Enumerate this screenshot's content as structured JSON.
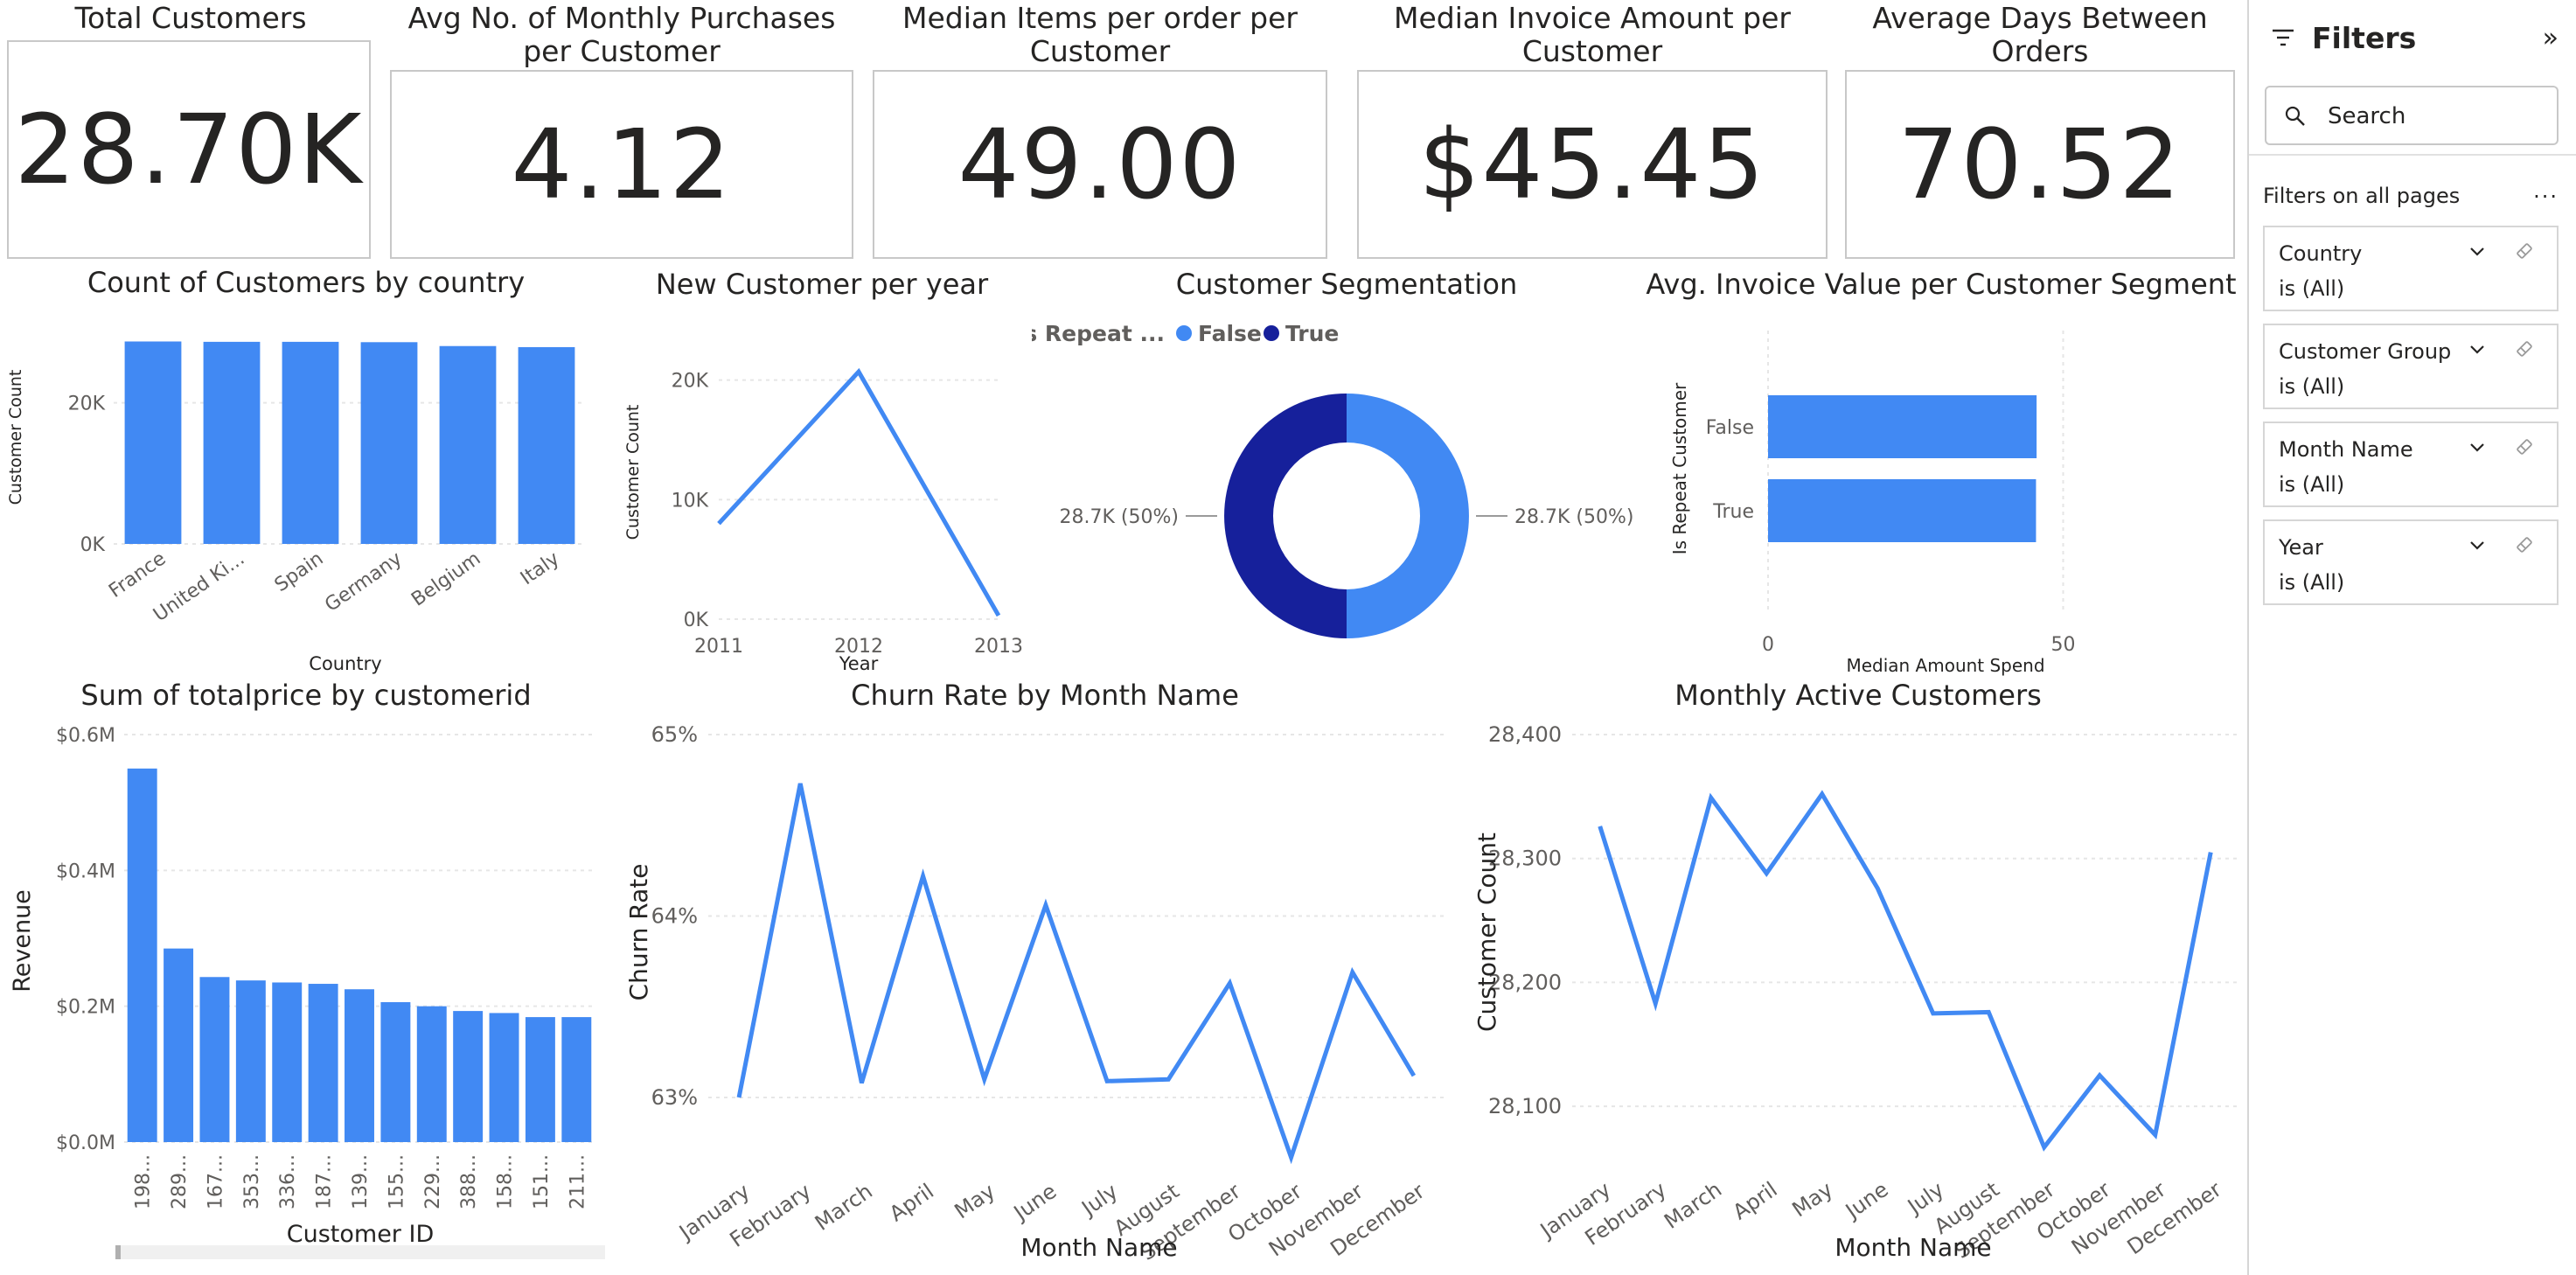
{
  "kpis": [
    {
      "title": "Total Customers",
      "value": "28.70K"
    },
    {
      "title": "Avg No. of Monthly Purchases per Customer",
      "value": "4.12"
    },
    {
      "title": "Median Items per order per Customer",
      "value": "49.00"
    },
    {
      "title": "Median Invoice Amount per Customer",
      "value": "$45.45"
    },
    {
      "title": "Average Days Between Orders",
      "value": "70.52"
    }
  ],
  "filters_pane": {
    "title": "Filters",
    "collapse_glyph": "»",
    "search_placeholder": "Search",
    "section_label": "Filters on all pages",
    "section_more": "...",
    "filters": [
      {
        "name": "Country",
        "value": "is (All)"
      },
      {
        "name": "Customer Group",
        "value": "is (All)"
      },
      {
        "name": "Month Name",
        "value": "is (All)"
      },
      {
        "name": "Year",
        "value": "is (All)"
      }
    ]
  },
  "colors": {
    "bar": "#4189f3",
    "dark_navy": "#16209b",
    "grid": "#e6e6e6",
    "text": "#252423"
  },
  "chart_data": [
    {
      "id": "country",
      "type": "bar",
      "title": "Count of Customers by country",
      "xlabel": "Country",
      "ylabel": "Customer Count",
      "categories": [
        "France",
        "United Ki...",
        "Spain",
        "Germany",
        "Belgium",
        "Italy"
      ],
      "values": [
        28700,
        28650,
        28650,
        28600,
        28050,
        27900
      ],
      "ylim": [
        0,
        30000
      ],
      "yticks": [
        {
          "v": 0,
          "label": "0K"
        },
        {
          "v": 20000,
          "label": "20K"
        }
      ],
      "grid": true
    },
    {
      "id": "newcust",
      "type": "line",
      "title": "New Customer per year",
      "xlabel": "Year",
      "ylabel": "Customer Count",
      "categories": [
        "2011",
        "2012",
        "2013"
      ],
      "values": [
        8000,
        20700,
        300
      ],
      "ylim": [
        0,
        24000
      ],
      "yticks": [
        {
          "v": 0,
          "label": "0K"
        },
        {
          "v": 10000,
          "label": "10K"
        },
        {
          "v": 20000,
          "label": "20K"
        }
      ],
      "grid": true
    },
    {
      "id": "segmentation",
      "type": "pie",
      "title": "Customer Segmentation",
      "legend_title": "Is Repeat ...",
      "legend_position": "top",
      "slices": [
        {
          "name": "False",
          "value": 28700,
          "label": "28.7K (50%)",
          "color": "#4189f3"
        },
        {
          "name": "True",
          "value": 28700,
          "label": "28.7K (50%)",
          "color": "#16209b"
        }
      ]
    },
    {
      "id": "invoice_segment",
      "type": "bar",
      "orientation": "horizontal",
      "title": "Avg. Invoice Value per Customer Segment",
      "xlabel": "Median Amount Spend",
      "ylabel": "Is Repeat Customer",
      "categories": [
        "False",
        "True"
      ],
      "values": [
        45.5,
        45.4
      ],
      "xlim": [
        0,
        56
      ],
      "xticks": [
        {
          "v": 0,
          "label": "0"
        },
        {
          "v": 50,
          "label": "50"
        }
      ],
      "grid": true
    },
    {
      "id": "totalprice",
      "type": "bar",
      "title": "Sum of totalprice by customerid",
      "xlabel": "Customer ID",
      "ylabel": "Revenue",
      "categories": [
        "198...",
        "289...",
        "167...",
        "353...",
        "336...",
        "187...",
        "139...",
        "155...",
        "229...",
        "388...",
        "158...",
        "151...",
        "211..."
      ],
      "values": [
        0.55,
        0.285,
        0.243,
        0.238,
        0.235,
        0.233,
        0.225,
        0.206,
        0.2,
        0.193,
        0.19,
        0.184,
        0.184
      ],
      "ylim": [
        0,
        0.6
      ],
      "yticks": [
        {
          "v": 0,
          "label": "$0.0M"
        },
        {
          "v": 0.2,
          "label": "$0.2M"
        },
        {
          "v": 0.4,
          "label": "$0.4M"
        },
        {
          "v": 0.6,
          "label": "$0.6M"
        }
      ],
      "grid": true
    },
    {
      "id": "churn",
      "type": "line",
      "title": "Churn Rate by Month Name",
      "xlabel": "Month Name",
      "ylabel": "Churn Rate",
      "categories": [
        "January",
        "February",
        "March",
        "April",
        "May",
        "June",
        "July",
        "August",
        "September",
        "October",
        "November",
        "December"
      ],
      "values": [
        63.0,
        64.73,
        63.08,
        64.22,
        63.1,
        64.06,
        63.09,
        63.1,
        63.63,
        62.67,
        63.69,
        63.12
      ],
      "ylim": [
        62.6,
        65.0
      ],
      "yticks": [
        {
          "v": 63,
          "label": "63%"
        },
        {
          "v": 64,
          "label": "64%"
        },
        {
          "v": 65,
          "label": "65%"
        }
      ],
      "grid": true
    },
    {
      "id": "mac",
      "type": "line",
      "title": "Monthly Active Customers",
      "xlabel": "Month Name",
      "ylabel": "Customer Count",
      "categories": [
        "January",
        "February",
        "March",
        "April",
        "May",
        "June",
        "July",
        "August",
        "September",
        "October",
        "November",
        "December"
      ],
      "values": [
        28326,
        28183,
        28349,
        28288,
        28352,
        28276,
        28175,
        28176,
        28067,
        28125,
        28077,
        28305
      ],
      "ylim": [
        28050,
        28400
      ],
      "yticks": [
        {
          "v": 28100,
          "label": "28,100"
        },
        {
          "v": 28200,
          "label": "28,200"
        },
        {
          "v": 28300,
          "label": "28,300"
        },
        {
          "v": 28400,
          "label": "28,400"
        }
      ],
      "grid": true
    }
  ]
}
